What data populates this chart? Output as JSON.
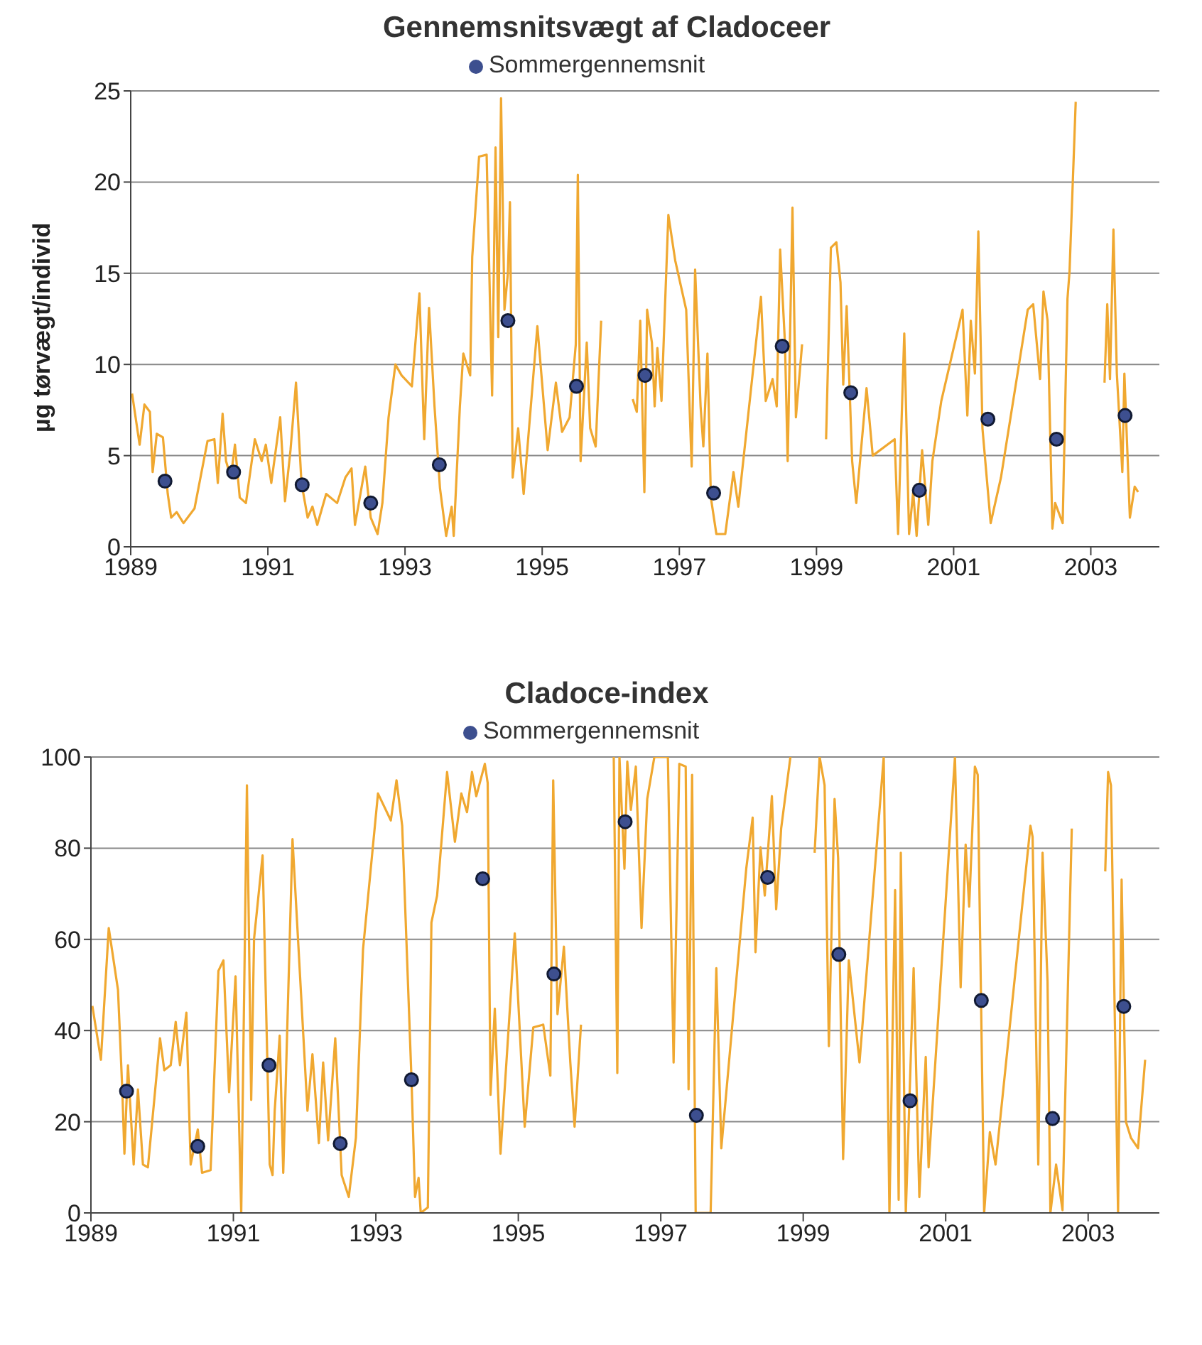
{
  "chart_data": [
    {
      "type": "line",
      "title": "Gennemsnitsvægt af Cladoceer",
      "ylabel": "µg tørvægt/individ",
      "xlim": [
        1989,
        2004
      ],
      "xticks": [
        1989,
        1991,
        1993,
        1995,
        1997,
        1999,
        2001,
        2003
      ],
      "ylim": [
        0,
        25
      ],
      "yticks": [
        0,
        5,
        10,
        15,
        20,
        25
      ],
      "grid": "y",
      "legend": "top",
      "series": [
        {
          "marker": "none",
          "color": "#f0a830",
          "x": [
            1989.02,
            1989.13,
            1989.2,
            1989.28,
            1989.32,
            1989.38,
            1989.47,
            1989.54,
            1989.59,
            1989.67,
            1989.77,
            1989.93,
            1990.12,
            1990.22,
            1990.27,
            1990.34,
            1990.39,
            1990.46,
            1990.52,
            1990.59,
            1990.68,
            1990.81,
            1990.91,
            1990.97,
            1991.05,
            1991.18,
            1991.25,
            1991.33,
            1991.41,
            1991.49,
            1991.58,
            1991.65,
            1991.72,
            1991.85,
            1992.01,
            1992.13,
            1992.22,
            1992.27,
            1992.42,
            1992.5,
            1992.6,
            1992.67,
            1992.76,
            1992.86,
            1992.95,
            1993.1,
            1993.21,
            1993.28,
            1993.35,
            1993.43,
            1993.51,
            1993.6,
            1993.68,
            1993.71,
            1993.8,
            1993.85,
            1993.95,
            1993.98,
            1994.08,
            1994.19,
            1994.27,
            1994.32,
            1994.36,
            1994.4,
            1994.45,
            1994.5,
            1994.53,
            1994.57,
            1994.65,
            1994.73,
            1994.93,
            1995.08,
            1995.2,
            1995.29,
            1995.4,
            1995.49,
            1995.52,
            1995.56,
            1995.65,
            1995.7,
            1995.78,
            1995.86,
            1996.1,
            1996.32,
            1996.38,
            1996.43,
            1996.49,
            1996.53,
            1996.6,
            1996.64,
            1996.68,
            1996.74,
            1996.84,
            1996.94,
            1997.1,
            1997.18,
            1997.23,
            1997.31,
            1997.35,
            1997.41,
            1997.46,
            1997.54,
            1997.67,
            1997.79,
            1997.86,
            1998.19,
            1998.26,
            1998.36,
            1998.42,
            1998.47,
            1998.54,
            1998.58,
            1998.65,
            1998.7,
            1998.79,
            1998.95,
            1999.14,
            1999.21,
            1999.29,
            1999.35,
            1999.39,
            1999.44,
            1999.52,
            1999.58,
            1999.73,
            1999.82,
            2000.14,
            2000.19,
            2000.28,
            2000.35,
            2000.41,
            2000.46,
            2000.54,
            2000.63,
            2000.69,
            2000.82,
            2001.13,
            2001.2,
            2001.25,
            2001.31,
            2001.36,
            2001.42,
            2001.54,
            2001.69,
            2002.08,
            2002.16,
            2002.26,
            2002.31,
            2002.37,
            2002.44,
            2002.48,
            2002.59,
            2002.66,
            2002.69,
            2002.78,
            2003.0,
            2003.2,
            2003.24,
            2003.28,
            2003.33,
            2003.38,
            2003.46,
            2003.49,
            2003.57,
            2003.64,
            2003.69
          ],
          "values": [
            8.4,
            5.6,
            7.8,
            7.4,
            4.1,
            6.2,
            6.0,
            2.9,
            1.6,
            1.9,
            1.3,
            2.1,
            5.8,
            5.9,
            3.5,
            7.3,
            4.7,
            3.8,
            5.6,
            2.7,
            2.4,
            5.9,
            4.7,
            5.6,
            3.5,
            7.1,
            2.5,
            5.3,
            9.0,
            3.5,
            1.6,
            2.2,
            1.2,
            2.9,
            2.4,
            3.8,
            4.3,
            1.2,
            4.4,
            1.6,
            0.7,
            2.4,
            7.1,
            10.0,
            9.4,
            8.8,
            13.9,
            5.9,
            13.1,
            7.7,
            3.2,
            0.6,
            2.2,
            0.6,
            7.7,
            10.6,
            9.4,
            15.9,
            21.4,
            21.5,
            8.3,
            21.9,
            11.5,
            24.6,
            13.0,
            15.0,
            18.9,
            3.8,
            6.5,
            2.9,
            12.1,
            5.3,
            9.0,
            6.3,
            7.1,
            11.1,
            20.4,
            4.7,
            11.2,
            6.5,
            5.5,
            12.4,
            null,
            8.1,
            7.4,
            12.4,
            3.0,
            13.0,
            11.2,
            7.7,
            10.9,
            8.0,
            18.2,
            15.7,
            13.0,
            4.4,
            15.2,
            7.7,
            5.5,
            10.6,
            2.7,
            0.7,
            0.7,
            4.1,
            2.2,
            13.7,
            8.0,
            9.2,
            7.7,
            16.3,
            11.2,
            4.7,
            18.6,
            7.1,
            11.1,
            null,
            5.9,
            16.4,
            16.7,
            14.5,
            8.9,
            13.2,
            4.7,
            2.4,
            8.7,
            5.0,
            5.9,
            0.7,
            11.7,
            0.7,
            3.0,
            0.6,
            5.3,
            1.2,
            4.7,
            8.0,
            13.0,
            7.2,
            12.4,
            9.5,
            17.3,
            6.5,
            1.3,
            3.8,
            13.0,
            13.3,
            9.2,
            14.0,
            12.4,
            1.0,
            2.4,
            1.3,
            13.6,
            15.1,
            24.4,
            null,
            9.0,
            13.3,
            9.2,
            17.4,
            9.5,
            4.1,
            9.5,
            1.6,
            3.3,
            3.0
          ]
        },
        {
          "type": "scatter",
          "marker": "circle",
          "name": "Sommergennemsnit",
          "color": "#3d4f8f",
          "x": [
            1989.5,
            1990.5,
            1991.5,
            1992.5,
            1993.5,
            1994.5,
            1995.5,
            1996.5,
            1997.5,
            1998.5,
            1999.5,
            2000.5,
            2001.5,
            2002.5,
            2003.5
          ],
          "values": [
            3.6,
            4.1,
            3.4,
            2.4,
            4.5,
            12.4,
            8.8,
            9.4,
            2.95,
            11.0,
            8.45,
            3.1,
            7.0,
            5.9,
            7.2
          ]
        }
      ]
    },
    {
      "type": "line",
      "title": "Cladoce-index",
      "xlim": [
        1989,
        2004
      ],
      "xticks": [
        1989,
        1991,
        1993,
        1995,
        1997,
        1999,
        2001,
        2003
      ],
      "ylim": [
        0,
        100
      ],
      "yticks": [
        0,
        20,
        40,
        60,
        80,
        100
      ],
      "grid": "y",
      "legend": "top",
      "series": [
        {
          "marker": "none",
          "color": "#f0a830",
          "x": [
            1989.02,
            1989.14,
            1989.25,
            1989.38,
            1989.44,
            1989.47,
            1989.52,
            1989.6,
            1989.66,
            1989.73,
            1989.8,
            1989.97,
            1990.03,
            1990.12,
            1990.19,
            1990.25,
            1990.34,
            1990.4,
            1990.5,
            1990.56,
            1990.68,
            1990.79,
            1990.86,
            1990.94,
            1991.03,
            1991.11,
            1991.19,
            1991.25,
            1991.29,
            1991.41,
            1991.51,
            1991.55,
            1991.58,
            1991.65,
            1991.7,
            1991.83,
            1992.04,
            1992.11,
            1992.2,
            1992.26,
            1992.33,
            1992.43,
            1992.52,
            1992.62,
            1992.72,
            1992.82,
            1993.03,
            1993.21,
            1993.29,
            1993.37,
            1993.5,
            1993.55,
            1993.6,
            1993.63,
            1993.73,
            1993.78,
            1993.86,
            1994.0,
            1994.11,
            1994.2,
            1994.28,
            1994.35,
            1994.41,
            1994.53,
            1994.57,
            1994.61,
            1994.67,
            1994.75,
            1994.95,
            1995.09,
            1995.21,
            1995.35,
            1995.45,
            1995.49,
            1995.55,
            1995.64,
            1995.73,
            1995.79,
            1995.88,
            1996.1,
            1996.34,
            1996.39,
            1996.42,
            1996.49,
            1996.53,
            1996.58,
            1996.65,
            1996.73,
            1996.81,
            1996.91,
            1997.1,
            1997.18,
            1997.26,
            1997.35,
            1997.39,
            1997.44,
            1997.49,
            1997.7,
            1997.78,
            1997.85,
            1998.2,
            1998.29,
            1998.33,
            1998.4,
            1998.46,
            1998.56,
            1998.62,
            1998.69,
            1998.82,
            1999.0,
            1999.16,
            1999.23,
            1999.3,
            1999.36,
            1999.44,
            1999.49,
            1999.56,
            1999.64,
            1999.79,
            2000.13,
            2000.21,
            2000.29,
            2000.34,
            2000.37,
            2000.44,
            2000.55,
            2000.63,
            2000.72,
            2000.76,
            2001.13,
            2001.21,
            2001.28,
            2001.33,
            2001.41,
            2001.45,
            2001.54,
            2001.62,
            2001.7,
            2002.19,
            2002.22,
            2002.3,
            2002.36,
            2002.43,
            2002.47,
            2002.55,
            2002.64,
            2002.77,
            2003.0,
            2003.24,
            2003.28,
            2003.32,
            2003.42,
            2003.47,
            2003.53,
            2003.6,
            2003.7,
            2003.8
          ],
          "values": [
            45.4,
            33.6,
            62.5,
            48.9,
            27.1,
            13.0,
            32.4,
            10.6,
            27.1,
            10.6,
            10.0,
            38.3,
            31.3,
            32.4,
            41.9,
            32.4,
            43.9,
            10.6,
            18.3,
            8.8,
            9.4,
            53.1,
            55.4,
            26.5,
            51.9,
            0,
            93.8,
            24.8,
            60.1,
            78.4,
            10.6,
            8.3,
            22.4,
            38.9,
            8.8,
            82.0,
            22.4,
            34.8,
            15.3,
            33.0,
            15.9,
            38.3,
            8.3,
            3.5,
            16.5,
            57.8,
            92.0,
            86.1,
            94.9,
            84.9,
            29.5,
            3.5,
            7.7,
            0,
            1.2,
            63.7,
            69.6,
            96.7,
            81.4,
            92.0,
            87.9,
            96.7,
            91.4,
            98.5,
            94.3,
            25.9,
            44.8,
            13.0,
            61.3,
            18.9,
            40.7,
            41.3,
            30.1,
            94.9,
            43.6,
            58.4,
            33.0,
            18.9,
            41.3,
            null,
            100,
            30.7,
            100,
            75.5,
            99,
            88.4,
            97.9,
            62.5,
            90.8,
            100,
            100,
            33.0,
            98.5,
            97.9,
            27.1,
            96.1,
            0,
            0,
            53.7,
            14.2,
            75.5,
            86.7,
            57.2,
            80.2,
            69.6,
            91.4,
            66.6,
            84.3,
            100,
            null,
            79.0,
            100,
            93.8,
            36.6,
            90.8,
            77.8,
            11.8,
            55.4,
            33.0,
            100,
            0,
            70.8,
            2.9,
            79.0,
            0,
            53.7,
            3.5,
            34.2,
            10.0,
            100,
            49.5,
            80.8,
            67.2,
            97.9,
            96.1,
            0,
            17.7,
            10.6,
            84.9,
            82.5,
            10.6,
            79.0,
            50.7,
            0,
            10.6,
            0.6,
            84.3,
            null,
            74.9,
            96.7,
            93.8,
            0,
            73.1,
            20.0,
            16.5,
            14.2,
            33.6
          ]
        },
        {
          "type": "scatter",
          "marker": "circle",
          "name": "Sommergennemsnit",
          "color": "#3d4f8f",
          "x": [
            1989.5,
            1990.5,
            1991.5,
            1992.5,
            1993.5,
            1994.5,
            1995.5,
            1996.5,
            1997.5,
            1998.5,
            1999.5,
            2000.5,
            2001.5,
            2002.5,
            2003.5
          ],
          "values": [
            26.7,
            14.6,
            32.4,
            15.2,
            29.2,
            73.3,
            52.4,
            85.8,
            21.4,
            73.6,
            56.7,
            24.6,
            46.6,
            20.7,
            45.3
          ]
        }
      ]
    }
  ]
}
